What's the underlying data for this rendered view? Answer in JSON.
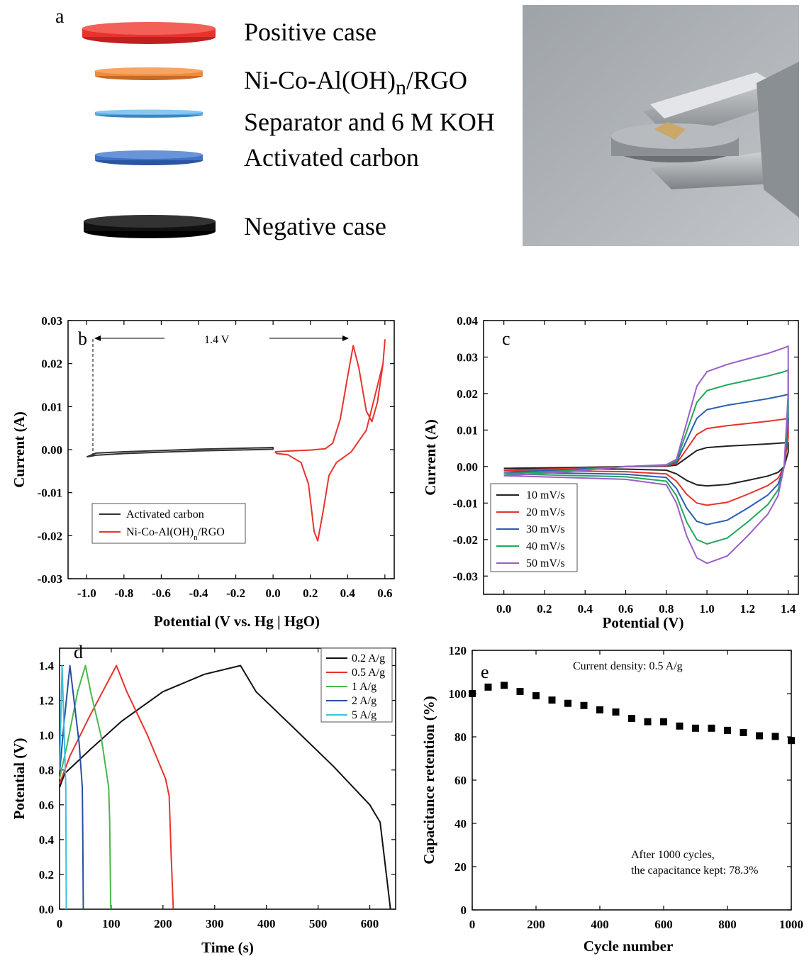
{
  "panel_a": {
    "letter": "a",
    "layers": [
      {
        "label_html": "Positive case",
        "color": "#e8332c",
        "rim": "#c02020"
      },
      {
        "label_html": "Ni-Co-Al(OH)<sub>n</sub>/RGO",
        "color": "#ef8a3c",
        "rim": "#c86a24"
      },
      {
        "label_html": "Separator and 6 M KOH",
        "color": "#5aa8e0",
        "rim": "#3b86c0"
      },
      {
        "label_html": "Activated carbon",
        "color": "#3f72c8",
        "rim": "#2a55a0"
      },
      {
        "label_html": "Negative case",
        "color": "#111111",
        "rim": "#000000"
      }
    ],
    "photo_icon": "coin-cell-clip-photo"
  },
  "chart_data": [
    {
      "id": "b",
      "letter": "b",
      "type": "line",
      "xlabel": "Potential (V vs. Hg | HgO)",
      "ylabel": "Current (A)",
      "xlim": [
        -1.1,
        0.65
      ],
      "ylim": [
        -0.03,
        0.03
      ],
      "xticks": [
        -1.0,
        -0.8,
        -0.6,
        -0.4,
        -0.2,
        0.0,
        0.2,
        0.4,
        0.6
      ],
      "xtick_labels": [
        "-1.0",
        "-0.8",
        "-0.6",
        "-0.4",
        "-0.2",
        "0.0",
        "0.2",
        "0.4",
        "0.6"
      ],
      "yticks": [
        -0.03,
        -0.02,
        -0.01,
        0.0,
        0.01,
        0.02,
        0.03
      ],
      "ytick_labels": [
        "-0.03",
        "-0.02",
        "-0.01",
        "0.00",
        "0.01",
        "0.02",
        "0.03"
      ],
      "annotation": "1.4 V",
      "legend_position": "bottom-left",
      "series": [
        {
          "name": "Activated carbon",
          "color": "#333333",
          "closed": true,
          "points": [
            [
              -1.0,
              -0.0017
            ],
            [
              -0.95,
              -0.0008
            ],
            [
              -0.8,
              -0.0005
            ],
            [
              -0.6,
              -0.0002
            ],
            [
              -0.4,
              0.0001
            ],
            [
              -0.2,
              0.0003
            ],
            [
              0.0,
              0.0005
            ],
            [
              0.0,
              0.0001
            ],
            [
              -0.2,
              -0.0001
            ],
            [
              -0.4,
              -0.0003
            ],
            [
              -0.6,
              -0.0006
            ],
            [
              -0.8,
              -0.0009
            ],
            [
              -0.95,
              -0.0013
            ],
            [
              -1.0,
              -0.0017
            ]
          ]
        },
        {
          "name": "Ni-Co-Al(OH)n/RGO",
          "legend_html": "Ni-Co-Al(OH)<tspan baseline-shift=\"sub\" font-size=\"11\">n</tspan>/RGO",
          "color": "#e8332c",
          "closed": true,
          "points": [
            [
              0.01,
              -0.0005
            ],
            [
              0.1,
              -0.0003
            ],
            [
              0.2,
              -0.0001
            ],
            [
              0.28,
              0.0002
            ],
            [
              0.32,
              0.0015
            ],
            [
              0.36,
              0.007
            ],
            [
              0.4,
              0.017
            ],
            [
              0.43,
              0.0242
            ],
            [
              0.46,
              0.019
            ],
            [
              0.5,
              0.009
            ],
            [
              0.53,
              0.0065
            ],
            [
              0.56,
              0.011
            ],
            [
              0.59,
              0.02
            ],
            [
              0.6,
              0.0255
            ],
            [
              0.59,
              0.02
            ],
            [
              0.5,
              0.0045
            ],
            [
              0.42,
              -0.0005
            ],
            [
              0.34,
              -0.003
            ],
            [
              0.3,
              -0.006
            ],
            [
              0.27,
              -0.014
            ],
            [
              0.24,
              -0.0212
            ],
            [
              0.22,
              -0.019
            ],
            [
              0.19,
              -0.008
            ],
            [
              0.15,
              -0.003
            ],
            [
              0.08,
              -0.0012
            ],
            [
              0.02,
              -0.0009
            ],
            [
              0.01,
              -0.0005
            ]
          ]
        }
      ]
    },
    {
      "id": "c",
      "letter": "c",
      "type": "line",
      "xlabel": "Potential (V)",
      "ylabel": "Current (A)",
      "xlim": [
        -0.1,
        1.45
      ],
      "ylim": [
        -0.035,
        0.04
      ],
      "xticks": [
        0.0,
        0.2,
        0.4,
        0.6,
        0.8,
        1.0,
        1.2,
        1.4
      ],
      "xtick_labels": [
        "0.0",
        "0.2",
        "0.4",
        "0.6",
        "0.8",
        "1.0",
        "1.2",
        "1.4"
      ],
      "yticks": [
        -0.03,
        -0.02,
        -0.01,
        0.0,
        0.01,
        0.02,
        0.03,
        0.04
      ],
      "ytick_labels": [
        "-0.03",
        "-0.02",
        "-0.01",
        "0.00",
        "0.01",
        "0.02",
        "0.03",
        "0.04"
      ],
      "legend_position": "bottom-left",
      "series": [
        {
          "name": "10 mV/s",
          "color": "#222222",
          "scale": 0.2
        },
        {
          "name": "20 mV/s",
          "color": "#e8332c",
          "scale": 0.4
        },
        {
          "name": "30 mV/s",
          "color": "#2b5fb0",
          "scale": 0.6
        },
        {
          "name": "40 mV/s",
          "color": "#22a85a",
          "scale": 0.8
        },
        {
          "name": "50 mV/s",
          "color": "#9b5fc8",
          "scale": 1.0
        }
      ],
      "base_curve_50": [
        [
          0.0,
          -0.0025
        ],
        [
          0.3,
          -0.0015
        ],
        [
          0.6,
          0.0
        ],
        [
          0.8,
          0.0005
        ],
        [
          0.85,
          0.002
        ],
        [
          0.9,
          0.012
        ],
        [
          0.95,
          0.022
        ],
        [
          1.0,
          0.026
        ],
        [
          1.1,
          0.028
        ],
        [
          1.2,
          0.0295
        ],
        [
          1.3,
          0.031
        ],
        [
          1.38,
          0.0325
        ],
        [
          1.4,
          0.033
        ],
        [
          1.4,
          0.02
        ],
        [
          1.38,
          0.0
        ],
        [
          1.35,
          -0.008
        ],
        [
          1.3,
          -0.013
        ],
        [
          1.2,
          -0.019
        ],
        [
          1.1,
          -0.0245
        ],
        [
          1.0,
          -0.0265
        ],
        [
          0.95,
          -0.025
        ],
        [
          0.9,
          -0.019
        ],
        [
          0.85,
          -0.01
        ],
        [
          0.8,
          -0.005
        ],
        [
          0.6,
          -0.0035
        ],
        [
          0.3,
          -0.003
        ],
        [
          0.0,
          -0.0025
        ]
      ]
    },
    {
      "id": "d",
      "letter": "d",
      "type": "line",
      "xlabel": "Time (s)",
      "ylabel": "Potential (V)",
      "xlim": [
        0,
        650
      ],
      "ylim": [
        0,
        1.5
      ],
      "xticks": [
        0,
        100,
        200,
        300,
        400,
        500,
        600
      ],
      "xtick_labels": [
        "0",
        "100",
        "200",
        "300",
        "400",
        "500",
        "600"
      ],
      "yticks": [
        0.0,
        0.2,
        0.4,
        0.6,
        0.8,
        1.0,
        1.2,
        1.4
      ],
      "ytick_labels": [
        "0.0",
        "0.2",
        "0.4",
        "0.6",
        "0.8",
        "1.0",
        "1.2",
        "1.4"
      ],
      "legend_position": "top-right",
      "series": [
        {
          "name": "0.2 A/g",
          "color": "#111111",
          "points": [
            [
              0,
              0.7
            ],
            [
              10,
              0.78
            ],
            [
              60,
              0.92
            ],
            [
              120,
              1.08
            ],
            [
              200,
              1.25
            ],
            [
              280,
              1.35
            ],
            [
              350,
              1.4
            ],
            [
              380,
              1.25
            ],
            [
              450,
              1.05
            ],
            [
              530,
              0.82
            ],
            [
              600,
              0.6
            ],
            [
              620,
              0.5
            ],
            [
              632,
              0.2
            ],
            [
              640,
              0.0
            ]
          ]
        },
        {
          "name": "0.5 A/g",
          "color": "#e8332c",
          "points": [
            [
              0,
              0.72
            ],
            [
              20,
              0.88
            ],
            [
              60,
              1.12
            ],
            [
              110,
              1.4
            ],
            [
              130,
              1.25
            ],
            [
              170,
              1.0
            ],
            [
              205,
              0.75
            ],
            [
              212,
              0.65
            ],
            [
              216,
              0.3
            ],
            [
              220,
              0.0
            ]
          ]
        },
        {
          "name": "1 A/g",
          "color": "#48b848",
          "points": [
            [
              0,
              0.75
            ],
            [
              15,
              0.95
            ],
            [
              35,
              1.25
            ],
            [
              50,
              1.4
            ],
            [
              60,
              1.25
            ],
            [
              80,
              1.0
            ],
            [
              95,
              0.7
            ],
            [
              97,
              0.5
            ],
            [
              99,
              0.0
            ]
          ]
        },
        {
          "name": "2 A/g",
          "color": "#2b4fa0",
          "points": [
            [
              0,
              0.78
            ],
            [
              8,
              1.05
            ],
            [
              20,
              1.4
            ],
            [
              28,
              1.2
            ],
            [
              38,
              0.95
            ],
            [
              44,
              0.7
            ],
            [
              45,
              0.4
            ],
            [
              46,
              0.0
            ]
          ]
        },
        {
          "name": "5 A/g",
          "color": "#3ac0e0",
          "points": [
            [
              0,
              0.8
            ],
            [
              5,
              1.4
            ],
            [
              9,
              1.0
            ],
            [
              12,
              0.7
            ],
            [
              13,
              0.0
            ]
          ]
        }
      ]
    },
    {
      "id": "e",
      "letter": "e",
      "type": "scatter",
      "xlabel": "Cycle number",
      "ylabel": "Capacitance retention (%)",
      "xlim": [
        0,
        1000
      ],
      "ylim": [
        0,
        120
      ],
      "xticks": [
        0,
        200,
        400,
        600,
        800,
        1000
      ],
      "xtick_labels": [
        "0",
        "200",
        "400",
        "600",
        "800",
        "1000"
      ],
      "yticks": [
        0,
        20,
        40,
        60,
        80,
        100,
        120
      ],
      "ytick_labels": [
        "0",
        "20",
        "40",
        "60",
        "80",
        "100",
        "120"
      ],
      "annotation_top": "Current  density: 0.5 A/g",
      "annotation_bottom_1": "After 1000 cycles,",
      "annotation_bottom_2": "the capacitance kept: 78.3%",
      "x": [
        0,
        50,
        100,
        150,
        200,
        250,
        300,
        350,
        400,
        450,
        500,
        550,
        600,
        650,
        700,
        750,
        800,
        850,
        900,
        950,
        1000
      ],
      "y": [
        100,
        103,
        103.8,
        101,
        99,
        97,
        95.5,
        94.5,
        92.5,
        91.5,
        88.5,
        87,
        87,
        85,
        84,
        84,
        83,
        82,
        80.5,
        80.2,
        78.3
      ]
    }
  ]
}
